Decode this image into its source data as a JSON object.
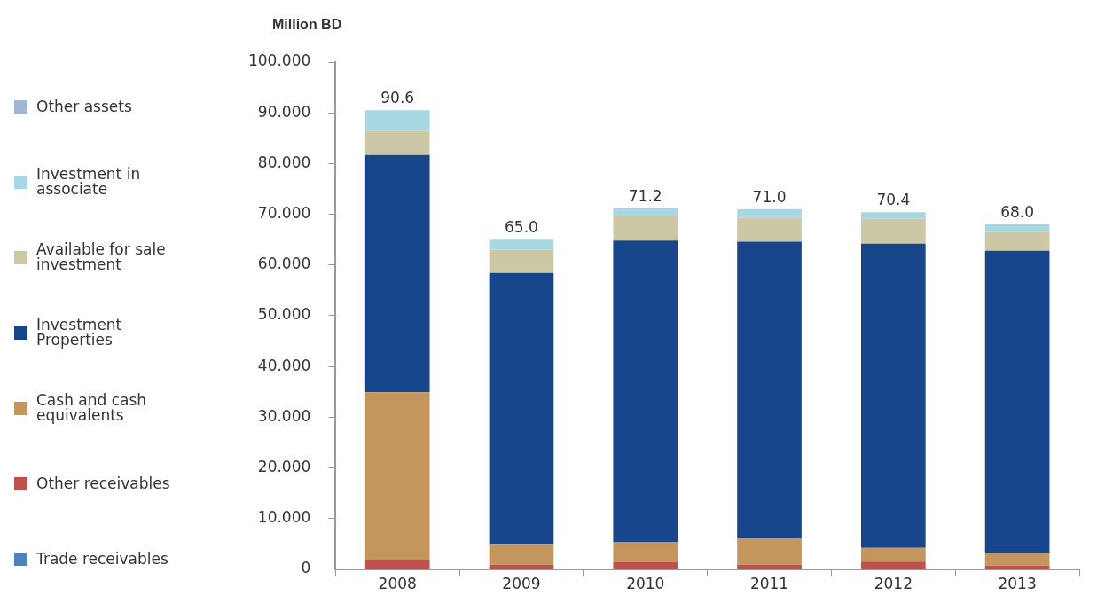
{
  "chart_data": {
    "type": "bar",
    "stacked": true,
    "ylabel": "Million BD",
    "categories": [
      "2008",
      "2009",
      "2010",
      "2011",
      "2012",
      "2013"
    ],
    "series": [
      {
        "name": "Trade receivables",
        "color": "#4f81bd",
        "values": [
          0,
          0,
          0,
          0,
          0,
          0
        ]
      },
      {
        "name": "Other receivables",
        "color": "#c0504d",
        "values": [
          1.9,
          0.9,
          1.4,
          0.9,
          1.5,
          0.7
        ]
      },
      {
        "name": "Cash and cash equivalents",
        "color": "#c4955c",
        "values": [
          33.0,
          4.1,
          4.0,
          5.1,
          2.7,
          2.5
        ]
      },
      {
        "name": "Investment Properties",
        "color": "#17478a",
        "values": [
          46.8,
          53.4,
          59.4,
          58.6,
          60.0,
          59.6
        ]
      },
      {
        "name": "Available for sale investment",
        "color": "#ccc8a5",
        "values": [
          4.7,
          4.6,
          4.8,
          4.7,
          4.9,
          3.7
        ]
      },
      {
        "name": "Investment in associate",
        "color": "#a6d7e3",
        "values": [
          4.1,
          2.0,
          1.6,
          1.7,
          1.3,
          1.5
        ]
      },
      {
        "name": "Other assets",
        "color": "#9fb5d6",
        "values": [
          0,
          0,
          0,
          0,
          0,
          0
        ]
      }
    ],
    "totals": [
      "90.6",
      "65.0",
      "71.2",
      "71.0",
      "70.4",
      "68.0"
    ],
    "ylim": [
      0,
      100
    ],
    "yticks": [
      0,
      {
        "value": 10,
        "label": "10.000"
      },
      {
        "value": 20,
        "label": "20.000"
      },
      {
        "value": 30,
        "label": "30.000"
      },
      {
        "value": 40,
        "label": "40.000"
      },
      {
        "value": 50,
        "label": "50.000"
      },
      {
        "value": 60,
        "label": "60.000"
      },
      {
        "value": 70,
        "label": "70.000"
      },
      {
        "value": 80,
        "label": "80.000"
      },
      {
        "value": 90,
        "label": "90.000"
      },
      {
        "value": 100,
        "label": "100.000"
      }
    ],
    "grid": false,
    "legend": "left"
  }
}
